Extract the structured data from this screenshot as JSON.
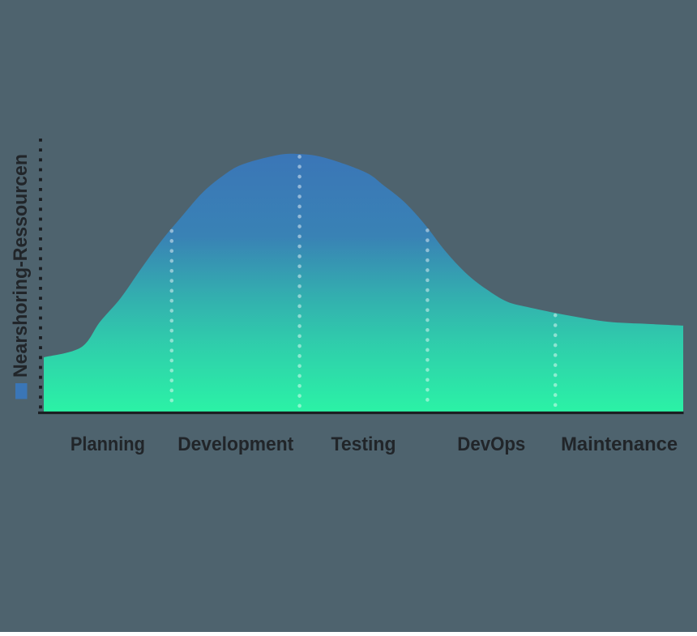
{
  "background_color": "#4E636E",
  "chart_data": {
    "type": "area",
    "title": "",
    "xlabel": "",
    "ylabel": "Nearshoring-Ressourcen",
    "categories": [
      "Planning",
      "Development",
      "Testing",
      "DevOps",
      "Maintenance"
    ],
    "x_axis_note": "x measured in phase units; one unit per phase; category centers at 0.5, 1.5, 2.5, 3.5, 4.5",
    "xlim": [
      0,
      5
    ],
    "ylim": [
      0,
      100
    ],
    "grid": "off",
    "y_tick_labels": [],
    "x_tick_labels_visible": true,
    "phase_boundary_lines_x": [
      1,
      2,
      3,
      4
    ],
    "legend_position": "square marker beside rotated y-axis title",
    "series": [
      {
        "name": "Nearshoring-Ressourcen",
        "points": [
          [
            0,
            19.8
          ],
          [
            0.29,
            23.4
          ],
          [
            0.44,
            32.8
          ],
          [
            0.6,
            41.4
          ],
          [
            0.76,
            52.1
          ],
          [
            0.92,
            62.4
          ],
          [
            1.08,
            71.3
          ],
          [
            1.24,
            79.9
          ],
          [
            1.4,
            86.1
          ],
          [
            1.55,
            90.2
          ],
          [
            1.81,
            93.5
          ],
          [
            1.98,
            94.1
          ],
          [
            2.19,
            92.8
          ],
          [
            2.51,
            87.5
          ],
          [
            2.66,
            82.5
          ],
          [
            2.82,
            76.5
          ],
          [
            2.98,
            68.3
          ],
          [
            3.14,
            58.6
          ],
          [
            3.3,
            50.6
          ],
          [
            3.46,
            44.7
          ],
          [
            3.62,
            40.2
          ],
          [
            3.78,
            38.2
          ],
          [
            4.09,
            35.2
          ],
          [
            4.41,
            32.8
          ],
          [
            4.73,
            32.0
          ],
          [
            5,
            31.4
          ]
        ]
      }
    ],
    "colors": {
      "gradient_top": "#3A76B7",
      "gradient_bottom": "#2BF2A6",
      "boundary_dots": "rgba(255,255,255,0.45)",
      "axis": "#1B1E22",
      "text": "#212529",
      "legend_marker": "#3A76B7"
    }
  }
}
